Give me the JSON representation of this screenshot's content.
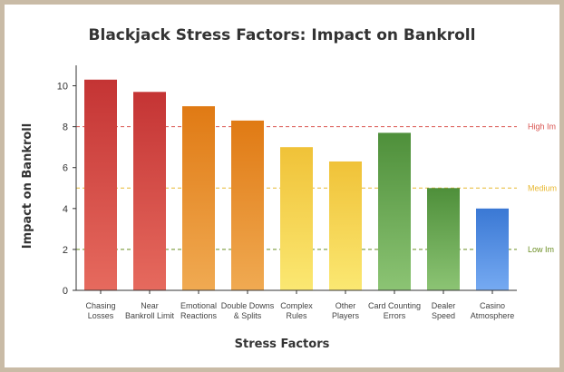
{
  "colors": {
    "frame": "#c9bba6",
    "high": "#d9534f",
    "medium": "#e8b830",
    "low": "#6b8e23"
  },
  "chart_data": {
    "type": "bar",
    "title": "Blackjack Stress Factors: Impact on Bankroll",
    "xlabel": "Stress Factors",
    "ylabel": "Impact on Bankroll",
    "ylim": [
      0,
      11
    ],
    "yticks": [
      "0",
      "2",
      "4",
      "6",
      "8",
      "10"
    ],
    "grid": false,
    "categories": [
      [
        "Chasing",
        "Losses"
      ],
      [
        "Near",
        "Bankroll Limit"
      ],
      [
        "Emotional",
        "Reactions"
      ],
      [
        "Double Downs",
        "& Splits"
      ],
      [
        "Complex",
        "Rules"
      ],
      [
        "Other",
        "Players"
      ],
      [
        "Card Counting",
        "Errors"
      ],
      [
        "Dealer",
        "Speed"
      ],
      [
        "Casino",
        "Atmosphere"
      ]
    ],
    "values": [
      10.3,
      9.7,
      9.0,
      8.3,
      7.0,
      6.3,
      7.7,
      5.0,
      4.0
    ],
    "bar_colors": [
      [
        "#c43434",
        "#e66a5e"
      ],
      [
        "#c43434",
        "#e66a5e"
      ],
      [
        "#e07a14",
        "#f0aa52"
      ],
      [
        "#e07a14",
        "#f0aa52"
      ],
      [
        "#f0c238",
        "#fbe872"
      ],
      [
        "#f0c238",
        "#fbe872"
      ],
      [
        "#4e8f3a",
        "#8cc474"
      ],
      [
        "#4e8f3a",
        "#8cc474"
      ],
      [
        "#3a78d4",
        "#76aaf2"
      ]
    ],
    "thresholds": [
      {
        "value": 8,
        "label": "High Im",
        "color": "#d9534f"
      },
      {
        "value": 5,
        "label": "Medium",
        "color": "#e8b830"
      },
      {
        "value": 2,
        "label": "Low Im",
        "color": "#6b8e23"
      }
    ]
  }
}
